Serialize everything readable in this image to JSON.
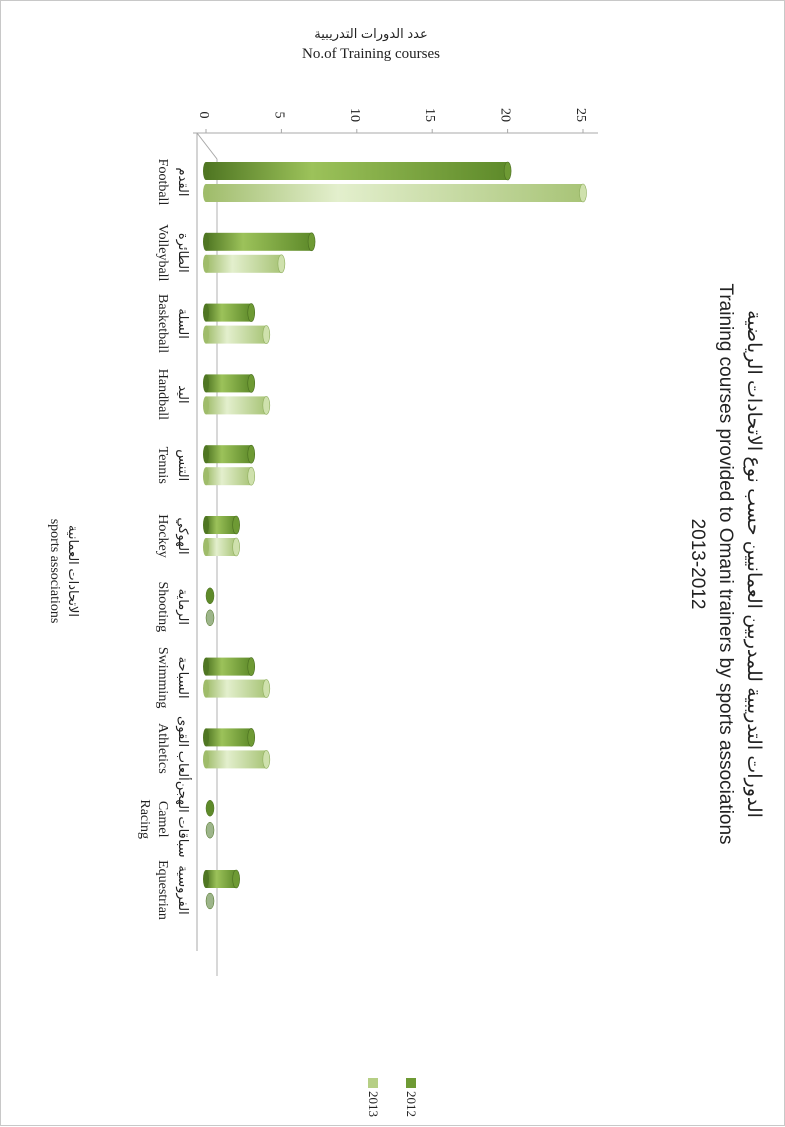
{
  "chart_data": {
    "type": "bar",
    "orientation": "rotated-90-clockwise",
    "title": {
      "arabic": "الدورات التدريبية للمدربين العمانيين حسب نوع الاتحادات الرياضية",
      "english": "Training courses provided to Omani trainers by sports associations",
      "years": "2013-2012"
    },
    "value_axis": {
      "label_arabic": "عدد الدورات التدريبية",
      "label_english": "No.of  Training courses",
      "ticks": [
        "0",
        "5",
        "10",
        "15",
        "20",
        "25"
      ],
      "range": [
        0,
        25
      ]
    },
    "category_axis": {
      "label_arabic": "الاتحادات العمانية",
      "label_english": "sports associations"
    },
    "categories": [
      {
        "arabic": "القدم",
        "english": [
          "Football"
        ]
      },
      {
        "arabic": "الطائرة",
        "english": [
          "Volleyball"
        ]
      },
      {
        "arabic": "السلة",
        "english": [
          "Basketball"
        ]
      },
      {
        "arabic": "اليد",
        "english": [
          "Handball"
        ]
      },
      {
        "arabic": "التنس",
        "english": [
          "Tennis"
        ]
      },
      {
        "arabic": "الهوكي",
        "english": [
          "Hockey"
        ]
      },
      {
        "arabic": "الرماية",
        "english": [
          "Shooting"
        ]
      },
      {
        "arabic": "السباحة",
        "english": [
          "Swimming"
        ]
      },
      {
        "arabic": "ألعاب القوى",
        "english": [
          "Athletics"
        ]
      },
      {
        "arabic": "سباقات الهجن",
        "english": [
          "Camel",
          "Racing"
        ]
      },
      {
        "arabic": "الفروسية",
        "english": [
          "Equestrian"
        ]
      }
    ],
    "series": [
      {
        "name": "2012",
        "color": "#6e9a34",
        "values": [
          20,
          7,
          3,
          3,
          3,
          2,
          0,
          3,
          3,
          0,
          2
        ]
      },
      {
        "name": "2013",
        "color": "#b6cf85",
        "values": [
          25,
          5,
          4,
          4,
          3,
          2,
          0,
          4,
          4,
          0,
          0
        ]
      }
    ],
    "legend": [
      "2012",
      "2013"
    ],
    "legend_position": "bottom-right",
    "grid": false
  }
}
